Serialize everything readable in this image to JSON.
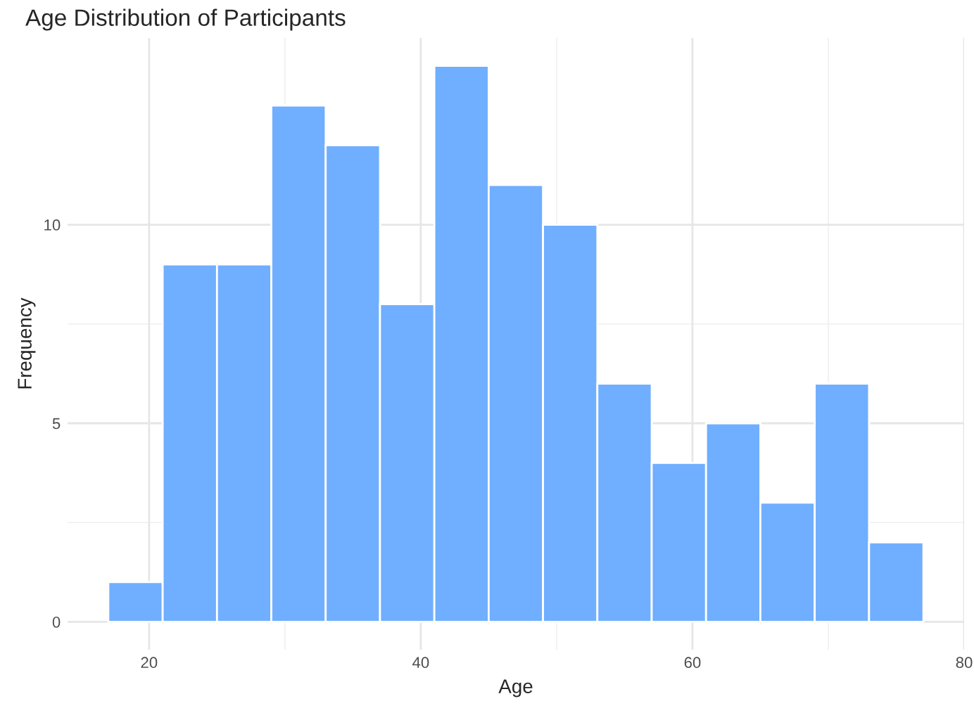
{
  "chart_data": {
    "type": "histogram",
    "title": "Age Distribution of Participants",
    "xlabel": "Age",
    "ylabel": "Frequency",
    "bins": [
      17,
      21,
      25,
      29,
      33,
      37,
      41,
      45,
      49,
      53,
      57,
      61,
      65,
      69,
      73,
      77
    ],
    "values": [
      1,
      9,
      9,
      13,
      12,
      8,
      14,
      11,
      10,
      6,
      4,
      5,
      3,
      6,
      2
    ],
    "color": "#70aeff",
    "xlim": [
      14,
      80
    ],
    "xticks": [
      20,
      40,
      60,
      80
    ],
    "ylim": [
      -0.7,
      14.7
    ],
    "yticks": [
      0,
      5,
      10
    ],
    "grid": true
  }
}
